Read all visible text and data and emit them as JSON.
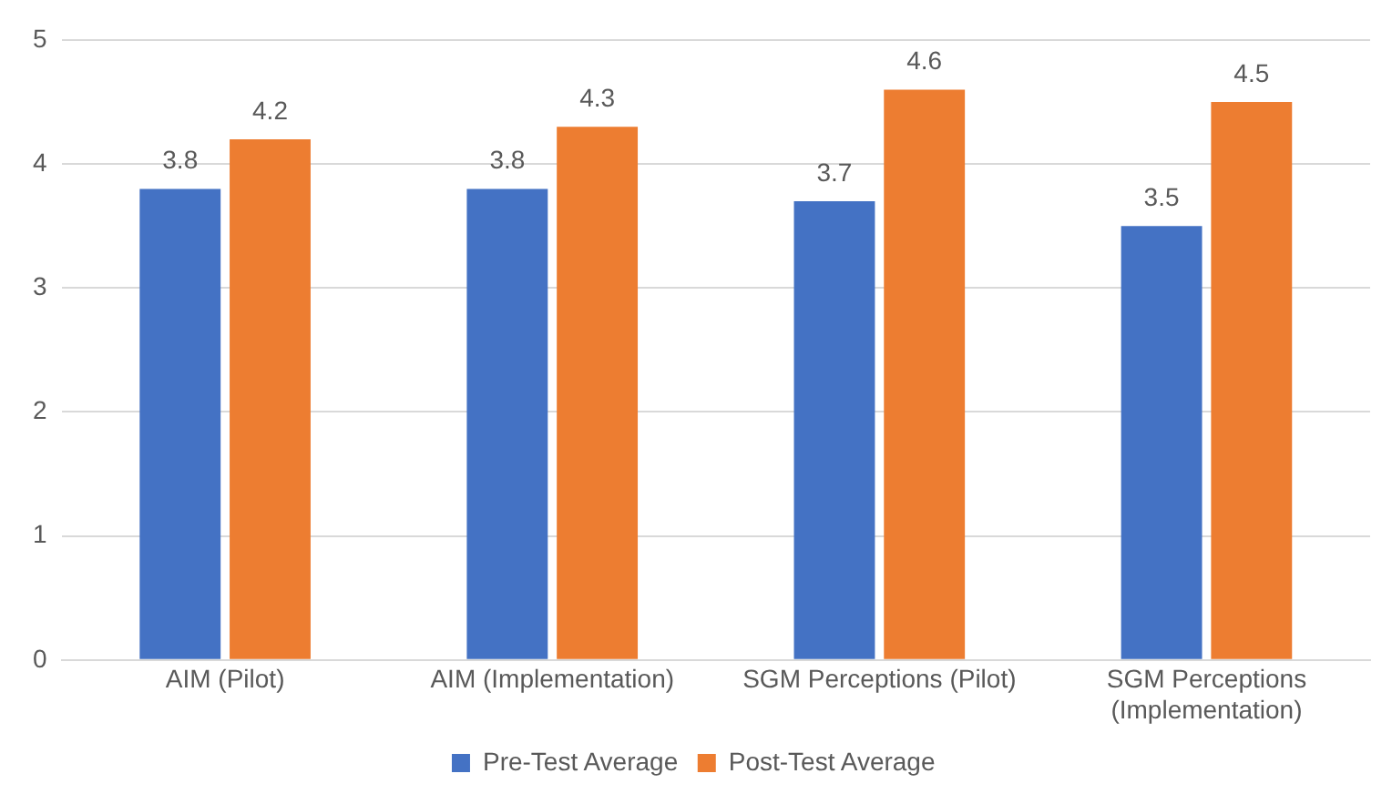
{
  "chart_data": {
    "type": "bar",
    "categories": [
      "AIM (Pilot)",
      "AIM (Implementation)",
      "SGM Perceptions (Pilot)",
      "SGM Perceptions (Implementation)"
    ],
    "series": [
      {
        "name": "Pre-Test Average",
        "color": "#4472c4",
        "values": [
          3.8,
          3.8,
          3.7,
          3.5
        ]
      },
      {
        "name": "Post-Test Average",
        "color": "#ed7d31",
        "values": [
          4.2,
          4.3,
          4.6,
          4.5
        ]
      }
    ],
    "ylim": [
      0,
      5
    ],
    "yticks": [
      0,
      1,
      2,
      3,
      4,
      5
    ],
    "grid": "y",
    "legend": "bottom",
    "data_labels": true
  }
}
